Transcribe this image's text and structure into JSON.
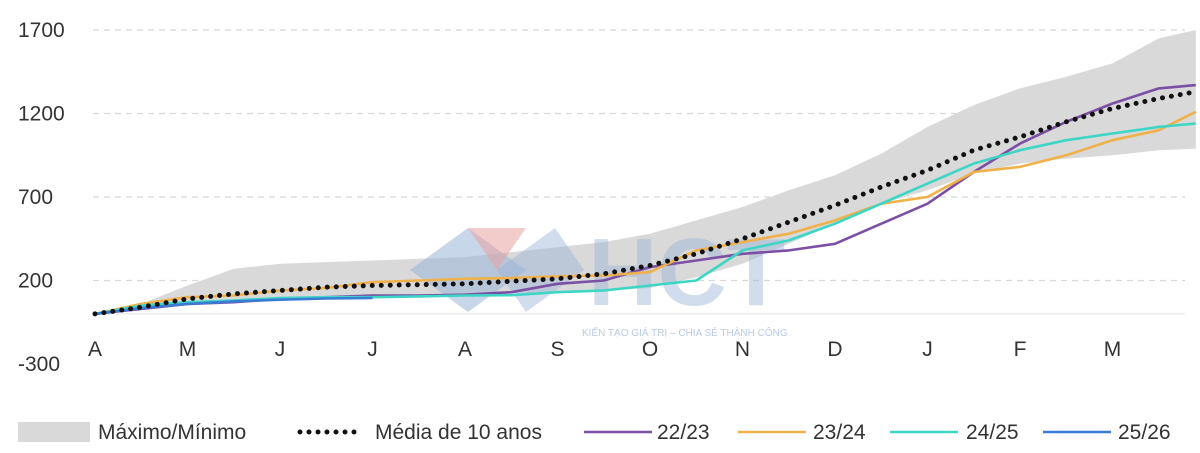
{
  "chart_data": {
    "type": "line",
    "title": "",
    "xlabel": "",
    "ylabel": "",
    "ylim": [
      -300,
      1700
    ],
    "yticks": [
      -300,
      200,
      700,
      1200,
      1700
    ],
    "grid": true,
    "legend_position": "bottom",
    "x_ticks": [
      "A",
      "M",
      "J",
      "J",
      "A",
      "S",
      "O",
      "N",
      "D",
      "J",
      "F",
      "M"
    ],
    "band": {
      "name": "Máximo/Mínimo",
      "color": "#d9d9d9",
      "x": [
        0,
        0.5,
        1,
        1.5,
        2,
        2.5,
        3,
        3.5,
        4,
        4.5,
        5,
        5.5,
        6,
        6.5,
        7,
        7.5,
        8,
        8.5,
        9,
        9.5,
        10,
        10.5,
        11,
        11.5,
        11.9
      ],
      "upper": [
        0,
        60,
        170,
        270,
        300,
        310,
        320,
        330,
        340,
        370,
        400,
        430,
        480,
        560,
        640,
        740,
        830,
        960,
        1120,
        1250,
        1350,
        1420,
        1500,
        1650,
        1700
      ],
      "lower": [
        0,
        30,
        60,
        80,
        100,
        105,
        110,
        115,
        120,
        125,
        130,
        140,
        155,
        220,
        300,
        420,
        540,
        660,
        740,
        840,
        900,
        930,
        950,
        980,
        990
      ]
    },
    "series": [
      {
        "name": "Média de 10 anos",
        "style": "dotted",
        "color": "#111111",
        "x": [
          0,
          0.5,
          1,
          1.5,
          2,
          2.5,
          3,
          3.5,
          4,
          4.5,
          5,
          5.5,
          6,
          6.5,
          7,
          7.5,
          8,
          8.5,
          9,
          9.5,
          10,
          10.5,
          11,
          11.5,
          11.9
        ],
        "y": [
          0,
          40,
          90,
          120,
          140,
          160,
          170,
          175,
          180,
          195,
          210,
          240,
          290,
          360,
          450,
          550,
          650,
          760,
          860,
          980,
          1060,
          1150,
          1230,
          1290,
          1330
        ]
      },
      {
        "name": "22/23",
        "color": "#7b4fa3",
        "x": [
          0,
          0.5,
          1,
          1.5,
          2,
          2.5,
          3,
          3.5,
          4,
          4.5,
          5,
          5.5,
          6,
          6.5,
          7,
          7.5,
          8,
          8.5,
          9,
          9.5,
          10,
          10.5,
          11,
          11.5,
          11.9
        ],
        "y": [
          0,
          30,
          60,
          70,
          90,
          100,
          110,
          110,
          115,
          130,
          180,
          200,
          280,
          320,
          360,
          380,
          420,
          540,
          660,
          850,
          1020,
          1150,
          1260,
          1350,
          1370
        ]
      },
      {
        "name": "23/24",
        "color": "#f0b04a",
        "x": [
          0,
          0.5,
          1,
          1.5,
          2,
          2.5,
          3,
          3.5,
          4,
          4.5,
          5,
          5.5,
          6,
          6.5,
          7,
          7.5,
          8,
          8.5,
          9,
          9.5,
          10,
          10.5,
          11,
          11.5,
          11.9
        ],
        "y": [
          0,
          60,
          100,
          110,
          140,
          155,
          190,
          200,
          210,
          215,
          225,
          230,
          250,
          380,
          430,
          480,
          560,
          660,
          700,
          850,
          880,
          950,
          1040,
          1100,
          1210
        ]
      },
      {
        "name": "24/25",
        "color": "#3dd6c6",
        "x": [
          0,
          0.5,
          1,
          1.5,
          2,
          2.5,
          3,
          3.5,
          4,
          4.5,
          5,
          5.5,
          6,
          6.5,
          7,
          7.5,
          8,
          8.5,
          9,
          9.5,
          10,
          10.5,
          11,
          11.5,
          11.9
        ],
        "y": [
          0,
          50,
          70,
          80,
          95,
          100,
          100,
          105,
          110,
          112,
          130,
          140,
          170,
          200,
          380,
          440,
          540,
          660,
          780,
          900,
          980,
          1040,
          1080,
          1120,
          1140
        ]
      },
      {
        "name": "25/26",
        "color": "#3a7bd5",
        "x": [
          0,
          0.5,
          1,
          1.5,
          2,
          2.5,
          3
        ],
        "y": [
          0,
          35,
          60,
          75,
          85,
          92,
          95
        ]
      }
    ],
    "legend": [
      {
        "label": "Máximo/Mínimo",
        "kind": "band"
      },
      {
        "label": "Média de 10 anos",
        "kind": "dotted"
      },
      {
        "label": "22/23",
        "kind": "line",
        "series": "22/23"
      },
      {
        "label": "23/24",
        "kind": "line",
        "series": "23/24"
      },
      {
        "label": "24/25",
        "kind": "line",
        "series": "24/25"
      },
      {
        "label": "25/26",
        "kind": "line",
        "series": "25/26"
      }
    ]
  },
  "watermark": {
    "logo_text": "HCT",
    "tagline": "KIẾN TẠO GIÁ TRỊ – CHIA SẺ THÀNH CÔNG"
  }
}
